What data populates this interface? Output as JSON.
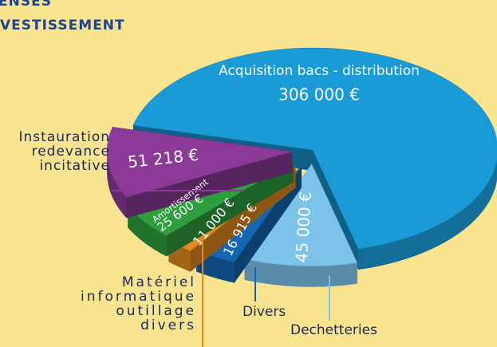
{
  "chart_data": {
    "type": "pie",
    "title": [
      "ENSES",
      "VESTISSEMENT"
    ],
    "categories": [
      "Acquisition bacs - distribution",
      "Dechetteries",
      "Divers",
      "Matériel\ninformatique\noutillage\ndivers",
      "Amortissement",
      "Instauration\nredevance\nincitative"
    ],
    "values": [
      306000,
      45000,
      16915,
      11000,
      25600,
      51218
    ],
    "value_labels": [
      "306 000 €",
      "45 000 €",
      "16 915 €",
      "11 000 €",
      "25 600 €",
      "51 218 €"
    ],
    "colors": [
      "#1a9ad6",
      "#7cc3e9",
      "#1466b1",
      "#e38a1e",
      "#2e9e3e",
      "#8b3a97"
    ]
  }
}
